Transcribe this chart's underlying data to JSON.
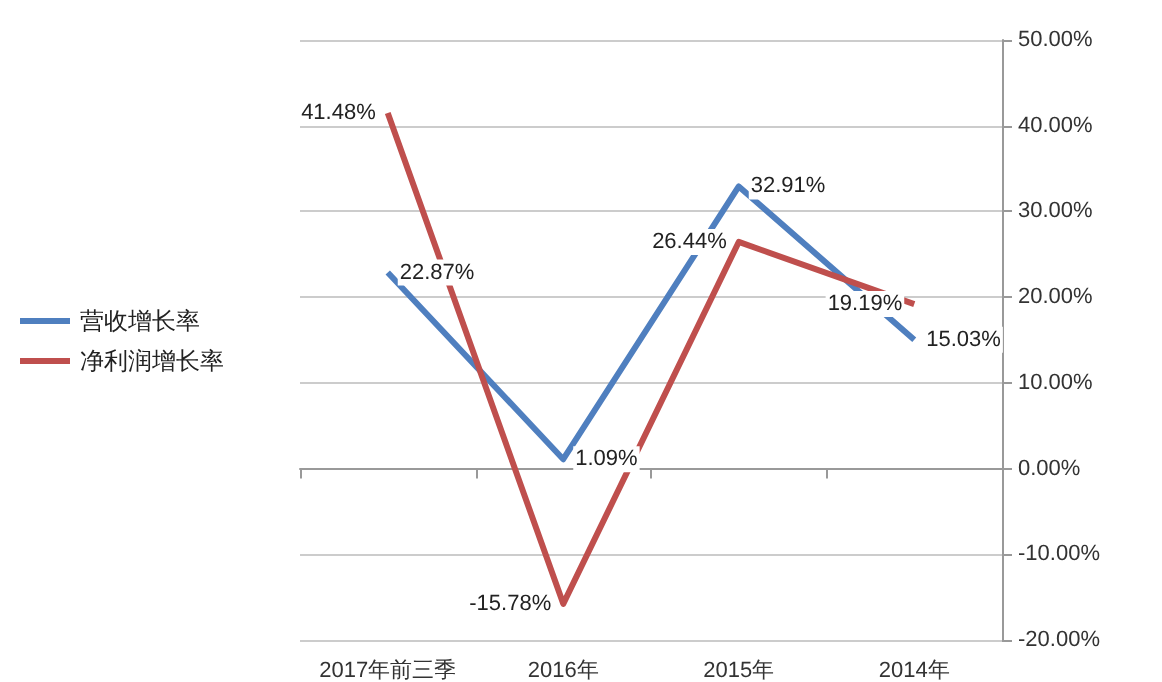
{
  "chart_data": {
    "type": "line",
    "categories": [
      "2017年前三季",
      "2016年",
      "2015年",
      "2014年"
    ],
    "series": [
      {
        "name": "营收增长率",
        "color": "#4f7fbf",
        "values": [
          22.87,
          1.09,
          32.91,
          15.03
        ],
        "value_labels": [
          "22.87%",
          "1.09%",
          "32.91%",
          "15.03%"
        ]
      },
      {
        "name": "净利润增长率",
        "color": "#bf4f4d",
        "values": [
          41.48,
          -15.78,
          26.44,
          19.19
        ],
        "value_labels": [
          "41.48%",
          "-15.78%",
          "26.44%",
          "19.19%"
        ]
      }
    ],
    "ylim": [
      -20,
      50
    ],
    "yticks": [
      {
        "value": -20,
        "label": "-20.00%"
      },
      {
        "value": -10,
        "label": "-10.00%"
      },
      {
        "value": 0,
        "label": "0.00%"
      },
      {
        "value": 10,
        "label": "10.00%"
      },
      {
        "value": 20,
        "label": "20.00%"
      },
      {
        "value": 30,
        "label": "30.00%"
      },
      {
        "value": 40,
        "label": "40.00%"
      },
      {
        "value": 50,
        "label": "50.00%"
      }
    ],
    "grid": "y",
    "legend": "left",
    "marker": "none",
    "line_style": "solid"
  }
}
